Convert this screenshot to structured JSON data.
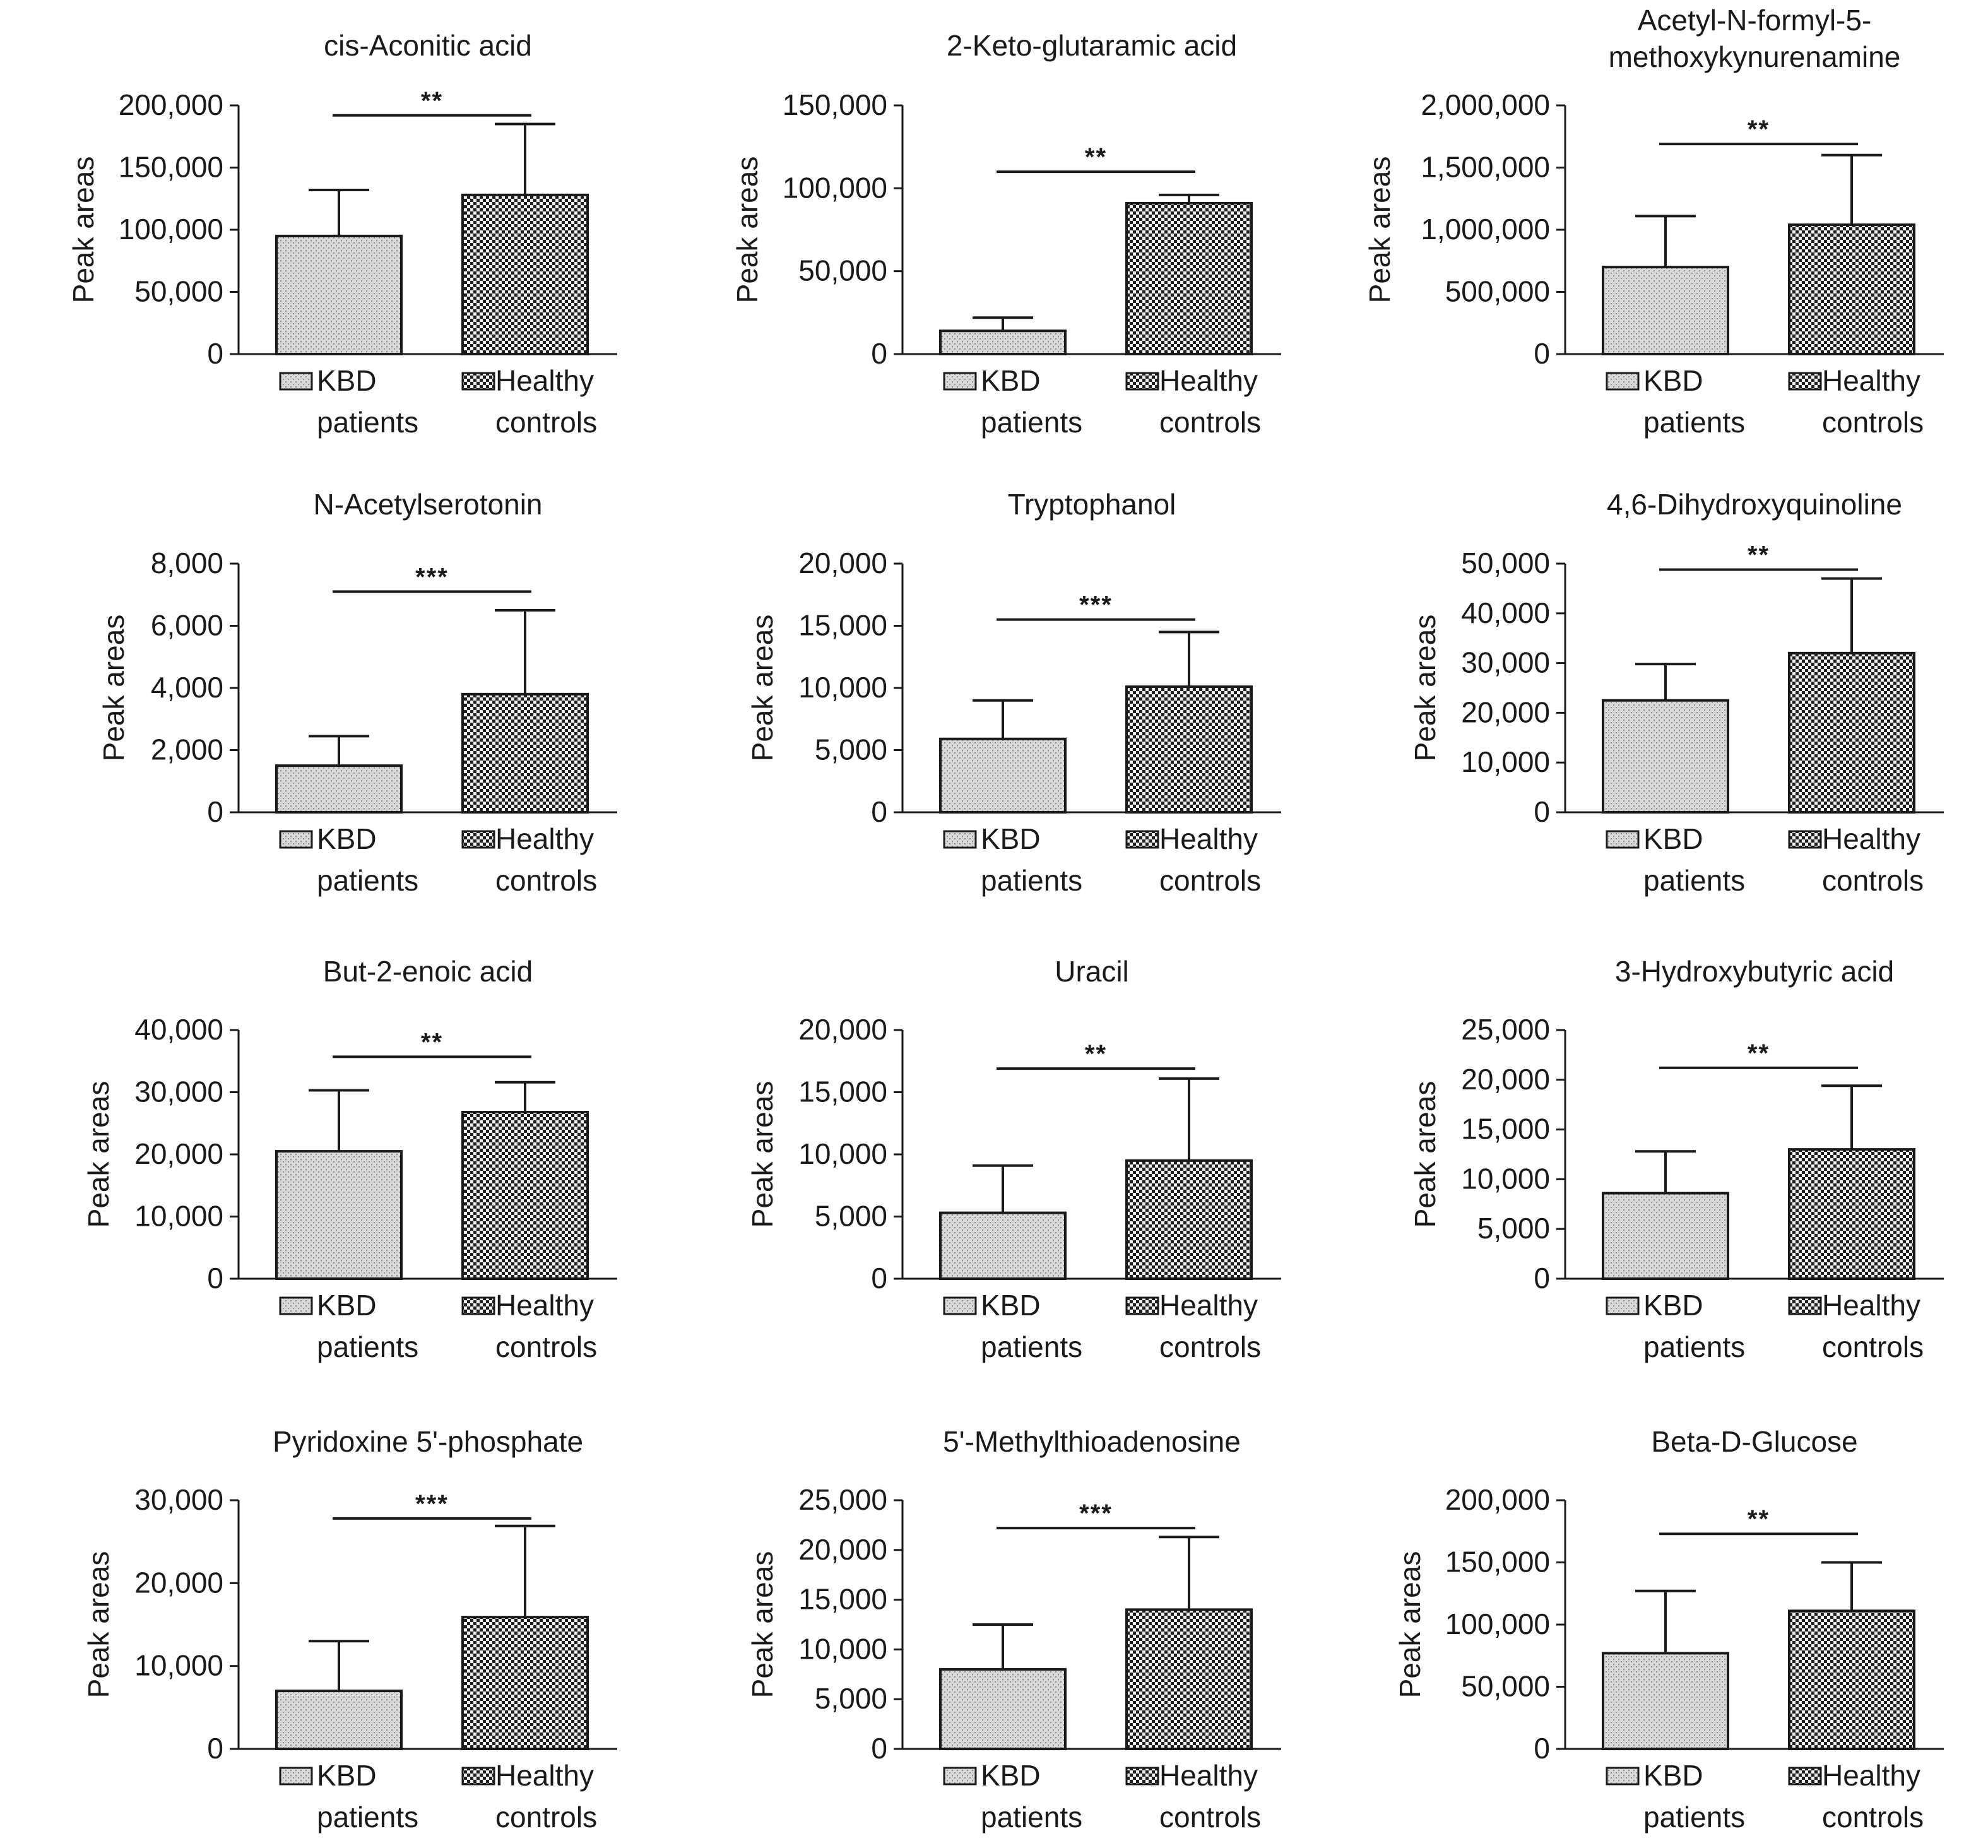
{
  "chart_data": [
    {
      "type": "bar",
      "title": "cis-Aconitic acid",
      "ylabel": "Peak areas",
      "categories": [
        "KBD patients",
        "Healthy controls"
      ],
      "values": [
        95000,
        128000
      ],
      "errors": [
        37000,
        57000
      ],
      "ylim": [
        0,
        200000
      ],
      "yticks": [
        0,
        50000,
        100000,
        150000,
        200000
      ],
      "ytick_labels": [
        "0",
        "50,000",
        "100,000",
        "150,000",
        "200,000"
      ],
      "significance": "**",
      "sig_level": 192000
    },
    {
      "type": "bar",
      "title": "2-Keto-glutaramic acid",
      "ylabel": "Peak areas",
      "categories": [
        "KBD patients",
        "Healthy controls"
      ],
      "values": [
        14000,
        91000
      ],
      "errors": [
        8000,
        5000
      ],
      "ylim": [
        0,
        150000
      ],
      "yticks": [
        0,
        50000,
        100000,
        150000
      ],
      "ytick_labels": [
        "0",
        "50,000",
        "100,000",
        "150,000"
      ],
      "significance": "**",
      "sig_level": 110000
    },
    {
      "type": "bar",
      "title": "Acetyl-N-formyl-5- methoxykynurenamine",
      "title_lines": [
        "Acetyl-N-formyl-5-",
        "methoxykynurenamine"
      ],
      "ylabel": "Peak areas",
      "categories": [
        "KBD patients",
        "Healthy controls"
      ],
      "values": [
        700000,
        1040000
      ],
      "errors": [
        410000,
        560000
      ],
      "ylim": [
        0,
        2000000
      ],
      "yticks": [
        0,
        500000,
        1000000,
        1500000,
        2000000
      ],
      "ytick_labels": [
        "0",
        "500,000",
        "1,000,000",
        "1,500,000",
        "2,000,000"
      ],
      "significance": "**",
      "sig_level": 1690000
    },
    {
      "type": "bar",
      "title": "N-Acetylserotonin",
      "ylabel": "Peak areas",
      "categories": [
        "KBD patients",
        "Healthy controls"
      ],
      "values": [
        1500,
        3800
      ],
      "errors": [
        950,
        2700
      ],
      "ylim": [
        0,
        8000
      ],
      "yticks": [
        0,
        2000,
        4000,
        6000,
        8000
      ],
      "ytick_labels": [
        "0",
        "2,000",
        "4,000",
        "6,000",
        "8,000"
      ],
      "significance": "***",
      "sig_level": 7100
    },
    {
      "type": "bar",
      "title": "Tryptophanol",
      "ylabel": "Peak areas",
      "categories": [
        "KBD patients",
        "Healthy controls"
      ],
      "values": [
        5900,
        10100
      ],
      "errors": [
        3100,
        4400
      ],
      "ylim": [
        0,
        20000
      ],
      "yticks": [
        0,
        5000,
        10000,
        15000,
        20000
      ],
      "ytick_labels": [
        "0",
        "5,000",
        "10,000",
        "15,000",
        "20,000"
      ],
      "significance": "***",
      "sig_level": 15500
    },
    {
      "type": "bar",
      "title": "4,6-Dihydroxyquinoline",
      "ylabel": "Peak areas",
      "categories": [
        "KBD patients",
        "Healthy controls"
      ],
      "values": [
        22500,
        32000
      ],
      "errors": [
        7300,
        15000
      ],
      "ylim": [
        0,
        50000
      ],
      "yticks": [
        0,
        10000,
        20000,
        30000,
        40000,
        50000
      ],
      "ytick_labels": [
        "0",
        "10,000",
        "20,000",
        "30,000",
        "40,000",
        "50,000"
      ],
      "significance": "**",
      "sig_level": 48800
    },
    {
      "type": "bar",
      "title": "But-2-enoic acid",
      "ylabel": "Peak areas",
      "categories": [
        "KBD patients",
        "Healthy controls"
      ],
      "values": [
        20500,
        26800
      ],
      "errors": [
        9800,
        4800
      ],
      "ylim": [
        0,
        40000
      ],
      "yticks": [
        0,
        10000,
        20000,
        30000,
        40000
      ],
      "ytick_labels": [
        "0",
        "10,000",
        "20,000",
        "30,000",
        "40,000"
      ],
      "significance": "**",
      "sig_level": 35700
    },
    {
      "type": "bar",
      "title": "Uracil",
      "ylabel": "Peak areas",
      "categories": [
        "KBD patients",
        "Healthy controls"
      ],
      "values": [
        5300,
        9500
      ],
      "errors": [
        3800,
        6600
      ],
      "ylim": [
        0,
        20000
      ],
      "yticks": [
        0,
        5000,
        10000,
        15000,
        20000
      ],
      "ytick_labels": [
        "0",
        "5,000",
        "10,000",
        "15,000",
        "20,000"
      ],
      "significance": "**",
      "sig_level": 16900
    },
    {
      "type": "bar",
      "title": "3-Hydroxybutyric acid",
      "ylabel": "Peak areas",
      "categories": [
        "KBD patients",
        "Healthy controls"
      ],
      "values": [
        8600,
        13000
      ],
      "errors": [
        4200,
        6400
      ],
      "ylim": [
        0,
        25000
      ],
      "yticks": [
        0,
        5000,
        10000,
        15000,
        20000,
        25000
      ],
      "ytick_labels": [
        "0",
        "5,000",
        "10,000",
        "15,000",
        "20,000",
        "25,000"
      ],
      "significance": "**",
      "sig_level": 21200
    },
    {
      "type": "bar",
      "title": "Pyridoxine 5'-phosphate",
      "ylabel": "Peak areas",
      "categories": [
        "KBD patients",
        "Healthy controls"
      ],
      "values": [
        7000,
        15900
      ],
      "errors": [
        6000,
        11000
      ],
      "ylim": [
        0,
        30000
      ],
      "yticks": [
        0,
        10000,
        20000,
        30000
      ],
      "ytick_labels": [
        "0",
        "10,000",
        "20,000",
        "30,000"
      ],
      "significance": "***",
      "sig_level": 27800
    },
    {
      "type": "bar",
      "title": "5'-Methylthioadenosine",
      "ylabel": "Peak areas",
      "categories": [
        "KBD patients",
        "Healthy controls"
      ],
      "values": [
        8000,
        14000
      ],
      "errors": [
        4500,
        7300
      ],
      "ylim": [
        0,
        25000
      ],
      "yticks": [
        0,
        5000,
        10000,
        15000,
        20000,
        25000
      ],
      "ytick_labels": [
        "0",
        "5,000",
        "10,000",
        "15,000",
        "20,000",
        "25,000"
      ],
      "significance": "***",
      "sig_level": 22200
    },
    {
      "type": "bar",
      "title": "Beta-D-Glucose",
      "ylabel": "Peak areas",
      "categories": [
        "KBD patients",
        "Healthy controls"
      ],
      "values": [
        77000,
        111000
      ],
      "errors": [
        50000,
        39000
      ],
      "ylim": [
        0,
        200000
      ],
      "yticks": [
        0,
        50000,
        100000,
        150000,
        200000
      ],
      "ytick_labels": [
        "0",
        "50,000",
        "100,000",
        "150,000",
        "200,000"
      ],
      "significance": "**",
      "sig_level": 173000
    }
  ],
  "legend": {
    "kbd_line1": "KBD",
    "kbd_line2": "patients",
    "hc_line1": "Healthy",
    "hc_line2": "controls"
  },
  "colors": {
    "kbd_fill": "#d9d9d9",
    "kbd_pattern": "#8c8c8c",
    "hc_fill": "#f2f2f2",
    "hc_pattern": "#1f1f1f",
    "line": "#1a1a1a"
  }
}
